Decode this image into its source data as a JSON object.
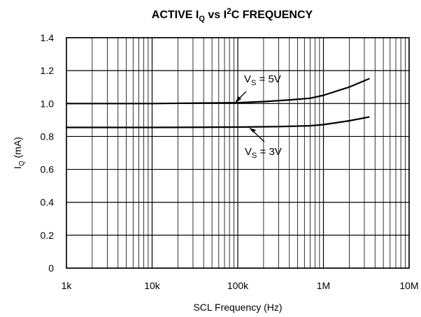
{
  "chart_data": {
    "type": "line",
    "title": {
      "part1": "ACTIVE I",
      "sub1": "Q",
      "part2": " vs I",
      "sup": "2",
      "part3": "C FREQUENCY"
    },
    "xlabel": "SCL Frequency (Hz)",
    "ylabel": {
      "main": "I",
      "sub": "Q",
      "rest": " (mA)"
    },
    "x_scale": "log",
    "xlim": [
      1000,
      10000000
    ],
    "ylim": [
      0,
      1.4
    ],
    "grid": true,
    "x_ticks": [
      {
        "value": 1000,
        "label": "1k"
      },
      {
        "value": 10000,
        "label": "10k"
      },
      {
        "value": 100000,
        "label": "100k"
      },
      {
        "value": 1000000,
        "label": "1M"
      },
      {
        "value": 10000000,
        "label": "10M"
      }
    ],
    "y_ticks": [
      {
        "value": 0,
        "label": "0"
      },
      {
        "value": 0.2,
        "label": "0.2"
      },
      {
        "value": 0.4,
        "label": "0.4"
      },
      {
        "value": 0.6,
        "label": "0.6"
      },
      {
        "value": 0.8,
        "label": "0.8"
      },
      {
        "value": 1.0,
        "label": "1.0"
      },
      {
        "value": 1.2,
        "label": "1.2"
      },
      {
        "value": 1.4,
        "label": "1.4"
      }
    ],
    "series": [
      {
        "label": {
          "v": "V",
          "sub": "S",
          "rest": " = 5V"
        },
        "x": [
          1000,
          10000,
          100000,
          200000,
          400000,
          700000,
          1000000,
          2000000,
          3400000
        ],
        "y": [
          1.0,
          1.0,
          1.005,
          1.012,
          1.022,
          1.032,
          1.05,
          1.1,
          1.15
        ]
      },
      {
        "label": {
          "v": "V",
          "sub": "S",
          "rest": " = 3V"
        },
        "x": [
          1000,
          10000,
          100000,
          300000,
          700000,
          1000000,
          2000000,
          3400000
        ],
        "y": [
          0.855,
          0.855,
          0.857,
          0.86,
          0.865,
          0.872,
          0.895,
          0.918
        ]
      }
    ]
  }
}
